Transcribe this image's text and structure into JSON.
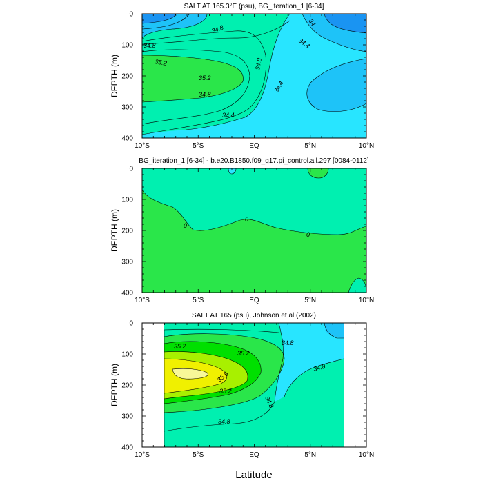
{
  "x_axis_title": "Latitude",
  "chart_data": [
    {
      "type": "contour",
      "title": "SALT AT 165.3°E (psu), BG_iteration_1 [6-34]",
      "ylabel": "DEPTH (m)",
      "xlabel": "",
      "xlim": [
        -10,
        10
      ],
      "ylim": [
        400,
        0
      ],
      "x_ticks": [
        -10,
        -5,
        0,
        5,
        10
      ],
      "x_tick_labels": [
        "10°S",
        "5°S",
        "EQ",
        "5°N",
        "10°N"
      ],
      "y_ticks": [
        0,
        100,
        200,
        300,
        400
      ],
      "contour_labels": [
        "34.8",
        "34.4",
        "34",
        "34.8",
        "35.2",
        "35.2",
        "34.8",
        "34.4",
        "34.8",
        "34.4"
      ],
      "data_extent_x": [
        -10,
        10
      ],
      "colors": {
        "c33_8": "#1a94f2",
        "c34_0": "#1ec3f8",
        "c34_4": "#28e5ff",
        "c34_8": "#00f0b0",
        "c35_2": "#2ae64a"
      }
    },
    {
      "type": "contour",
      "title": "BG_iteration_1 [6-34] - b.e20.B1850.f09_g17.pi_control.all.297 [0084-0112]",
      "ylabel": "DEPTH (m)",
      "xlabel": "",
      "xlim": [
        -10,
        10
      ],
      "ylim": [
        400,
        0
      ],
      "x_ticks": [
        -10,
        -5,
        0,
        5,
        10
      ],
      "x_tick_labels": [
        "10°S",
        "5°S",
        "EQ",
        "5°N",
        "10°N"
      ],
      "y_ticks": [
        0,
        100,
        200,
        300,
        400
      ],
      "contour_labels": [
        "0",
        "0",
        "0"
      ],
      "data_extent_x": [
        -10,
        10
      ],
      "colors": {
        "neg": "#00f0b0",
        "pos": "#2ae64a",
        "low": "#28e5ff"
      }
    },
    {
      "type": "contour",
      "title": "SALT AT 165 (psu), Johnson et al (2002)",
      "ylabel": "DEPTH (m)",
      "xlabel": "Latitude",
      "xlim": [
        -10,
        10
      ],
      "ylim": [
        400,
        0
      ],
      "x_ticks": [
        -10,
        -5,
        0,
        5,
        10
      ],
      "x_tick_labels": [
        "10°S",
        "5°S",
        "EQ",
        "5°N",
        "10°N"
      ],
      "y_ticks": [
        0,
        100,
        200,
        300,
        400
      ],
      "contour_labels": [
        "34.8",
        "35.2",
        "35.2",
        "34.8",
        "35.6",
        "35.2",
        "34.8",
        "34.8"
      ],
      "data_extent_x": [
        -8,
        8
      ],
      "colors": {
        "c34_0": "#1ec3f8",
        "c34_4": "#28e5ff",
        "c34_8": "#00f0b0",
        "c35_0": "#2ae64a",
        "c35_2": "#00e000",
        "c35_4": "#a8f000",
        "c35_6": "#f0f000",
        "c35_8": "#f8f898"
      }
    }
  ]
}
